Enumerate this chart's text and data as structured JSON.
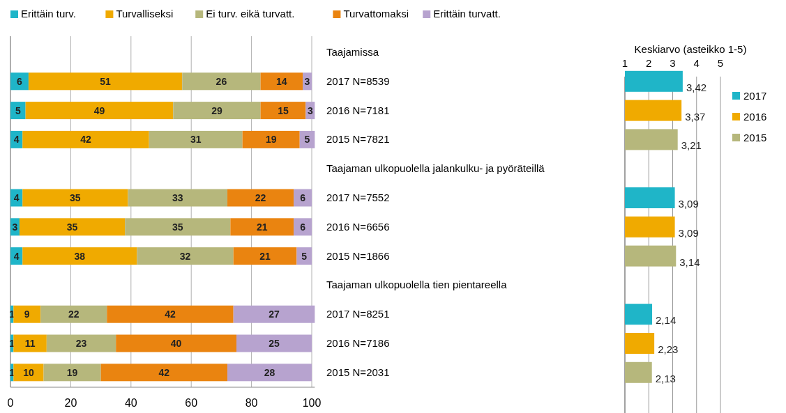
{
  "chart_data": [
    {
      "type": "bar",
      "orientation": "horizontal",
      "stacked": true,
      "categories": [
        "Taajamissa",
        "2017 N=8539",
        "2016 N=7181",
        "2015 N=7821",
        "Taajaman ulkopuolella jalankulku- ja pyöräteillä",
        "2017 N=7552",
        "2016 N=6656",
        "2015 N=1866",
        "Taajaman ulkopuolella tien pientareella",
        "2017 N=8251",
        "2016 N=7186",
        "2015 N=2031"
      ],
      "series": [
        {
          "name": "Erittäin turv.",
          "color": "#1fb5c8",
          "values": [
            null,
            6,
            5,
            4,
            null,
            4,
            3,
            4,
            null,
            1,
            1,
            1
          ]
        },
        {
          "name": "Turvalliseksi",
          "color": "#f0aa00",
          "values": [
            null,
            51,
            49,
            42,
            null,
            35,
            35,
            38,
            null,
            9,
            11,
            10
          ]
        },
        {
          "name": "Ei turv. eikä turvatt.",
          "color": "#b6b77c",
          "values": [
            null,
            26,
            29,
            31,
            null,
            33,
            35,
            32,
            null,
            22,
            23,
            19
          ]
        },
        {
          "name": "Turvattomaksi",
          "color": "#ea8410",
          "values": [
            null,
            14,
            15,
            19,
            null,
            22,
            21,
            21,
            null,
            42,
            40,
            42
          ]
        },
        {
          "name": "Erittäin turvatt.",
          "color": "#b7a3cf",
          "values": [
            null,
            3,
            3,
            5,
            null,
            6,
            6,
            5,
            null,
            27,
            25,
            28
          ]
        }
      ],
      "xlim": [
        0,
        101
      ],
      "xticks": [
        0,
        20,
        40,
        60,
        80,
        100
      ],
      "grid": "x",
      "legend": "top",
      "data_labels": true
    },
    {
      "type": "bar",
      "orientation": "horizontal",
      "title": "Keskiarvo (asteikko 1-5)",
      "categories": [
        null,
        null,
        null
      ],
      "series": [
        {
          "name": "2017",
          "color": "#1fb5c8",
          "values": [
            3.42,
            3.09,
            2.14
          ],
          "value_labels": [
            "3,42",
            "3,09",
            "2,14"
          ]
        },
        {
          "name": "2016",
          "color": "#f0aa00",
          "values": [
            3.37,
            3.09,
            2.23
          ],
          "value_labels": [
            "3,37",
            "3,09",
            "2,23"
          ]
        },
        {
          "name": "2015",
          "color": "#b6b77c",
          "values": [
            3.21,
            3.14,
            2.13
          ],
          "value_labels": [
            "3,21",
            "3,14",
            "2,13"
          ]
        }
      ],
      "xlim": [
        1,
        5
      ],
      "xticks": [
        1,
        2,
        3,
        4,
        5
      ],
      "grid": "x",
      "legend": "right"
    }
  ]
}
